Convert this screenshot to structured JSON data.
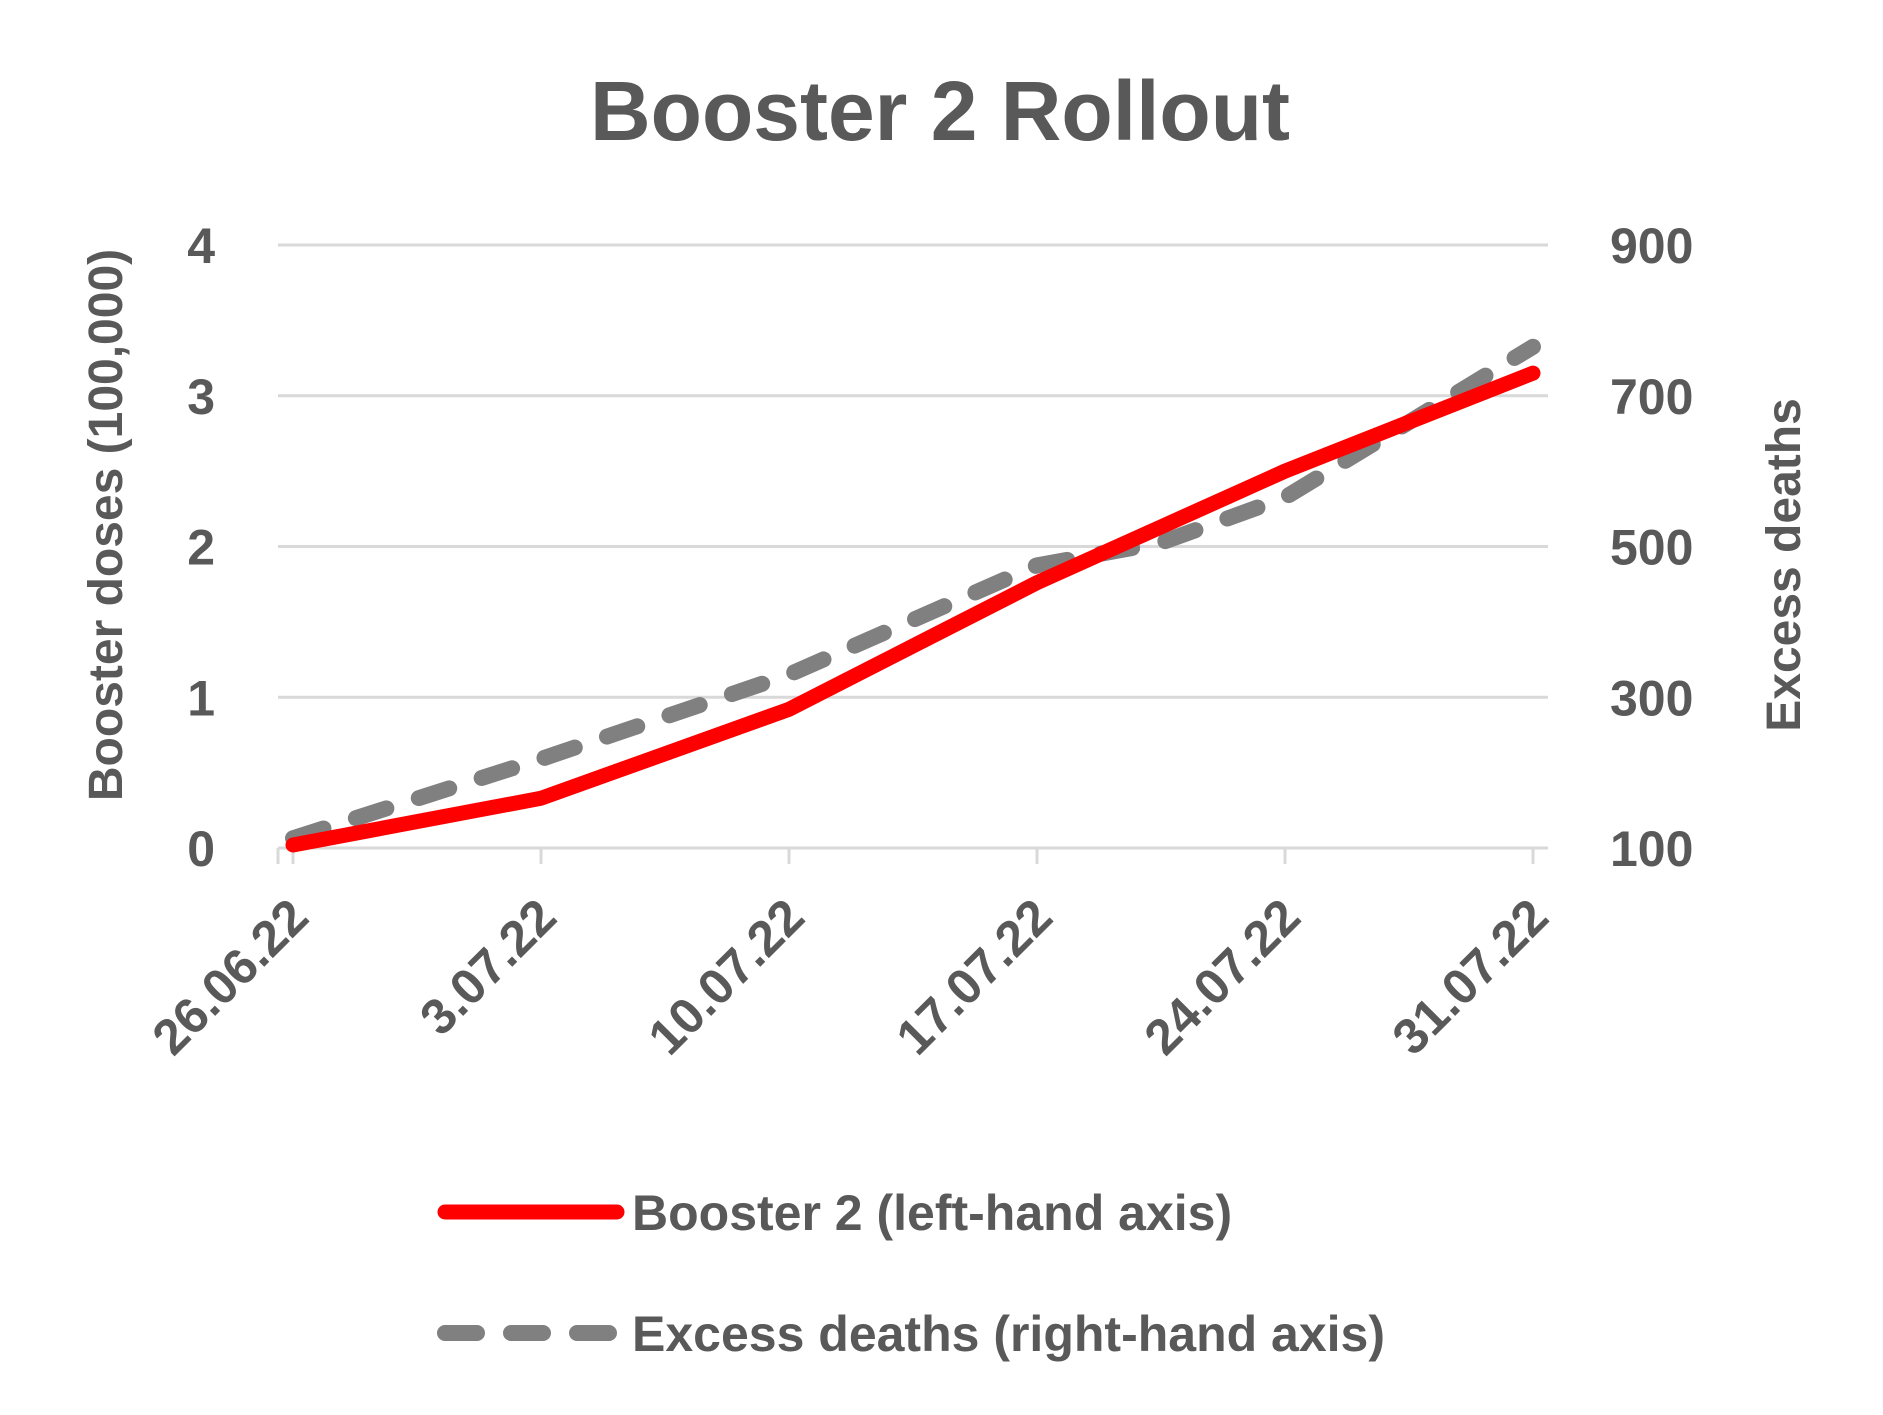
{
  "chart_data": {
    "type": "line",
    "title": "Booster 2 Rollout",
    "x": [
      "26.06.22",
      "3.07.22",
      "10.07.22",
      "17.07.22",
      "24.07.22",
      "31.07.22"
    ],
    "series": [
      {
        "name": "Booster 2 (left-hand axis)",
        "axis": "left",
        "color": "#ff0000",
        "style": "solid",
        "x": [
          0,
          1,
          2,
          3,
          3.5,
          4,
          5
        ],
        "values": [
          0.02,
          0.33,
          0.92,
          1.76,
          2.13,
          2.5,
          3.15
        ]
      },
      {
        "name": "Excess deaths (right-hand axis)",
        "axis": "right",
        "color": "#808080",
        "style": "dashed",
        "x": [
          0,
          1,
          2,
          3,
          3.5,
          4,
          5
        ],
        "values": [
          113,
          218,
          330,
          475,
          505,
          565,
          765
        ]
      }
    ],
    "y_left": {
      "label": "Booster doses (100,000)",
      "ticks": [
        "0",
        "1",
        "2",
        "3",
        "4"
      ],
      "range": [
        0,
        4
      ]
    },
    "y_right": {
      "label": "Excess deaths",
      "ticks": [
        "100",
        "300",
        "500",
        "700",
        "900"
      ],
      "range": [
        100,
        900
      ]
    },
    "grid": true,
    "gridColor": "#d9d9d9",
    "legend": "bottom"
  }
}
